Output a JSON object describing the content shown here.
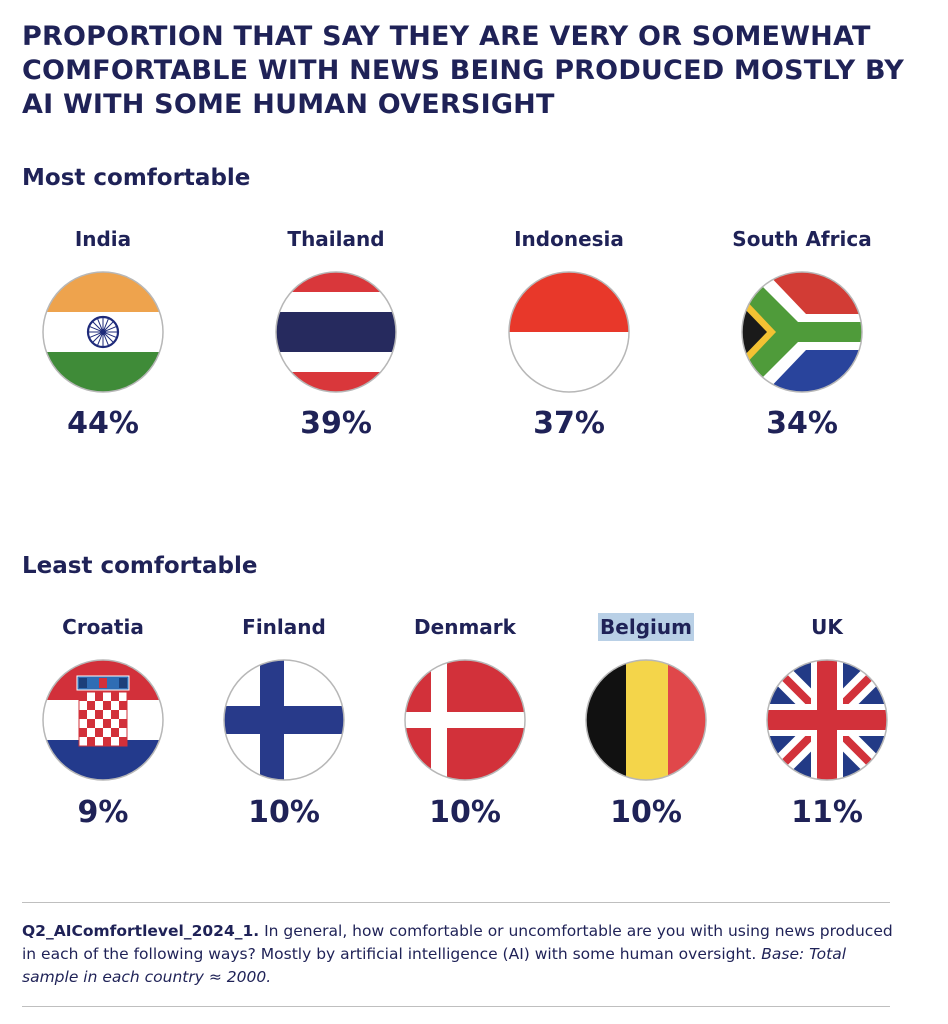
{
  "title": "PROPORTION THAT SAY THEY ARE VERY OR SOMEWHAT COMFORTABLE WITH NEWS BEING PRODUCED MOSTLY BY AI WITH SOME HUMAN OVERSIGHT",
  "most_label": "Most comfortable",
  "least_label": "Least comfortable",
  "chart_data": {
    "type": "table",
    "title": "PROPORTION THAT SAY THEY ARE VERY OR SOMEWHAT COMFORTABLE WITH NEWS BEING PRODUCED MOSTLY BY AI WITH SOME HUMAN OVERSIGHT",
    "most_comfortable": [
      {
        "country": "India",
        "value": 44,
        "label": "44%"
      },
      {
        "country": "Thailand",
        "value": 39,
        "label": "39%"
      },
      {
        "country": "Indonesia",
        "value": 37,
        "label": "37%"
      },
      {
        "country": "South Africa",
        "value": 34,
        "label": "34%"
      }
    ],
    "least_comfortable": [
      {
        "country": "Croatia",
        "value": 9,
        "label": "9%"
      },
      {
        "country": "Finland",
        "value": 10,
        "label": "10%"
      },
      {
        "country": "Denmark",
        "value": 10,
        "label": "10%"
      },
      {
        "country": "Belgium",
        "value": 10,
        "label": "10%"
      },
      {
        "country": "UK",
        "value": 11,
        "label": "11%"
      }
    ]
  },
  "footnote": {
    "code": "Q2_AIComfortlevel_2024_1.",
    "question": " In general, how comfortable or uncomfortable are you with using news produced in each of the following ways? Mostly by artificial intelligence (AI) with some human oversight. ",
    "base": "Base: Total sample in each country ≈ 2000."
  },
  "colors": {
    "text": "#1f2257",
    "highlight": "#b9d0e6"
  }
}
